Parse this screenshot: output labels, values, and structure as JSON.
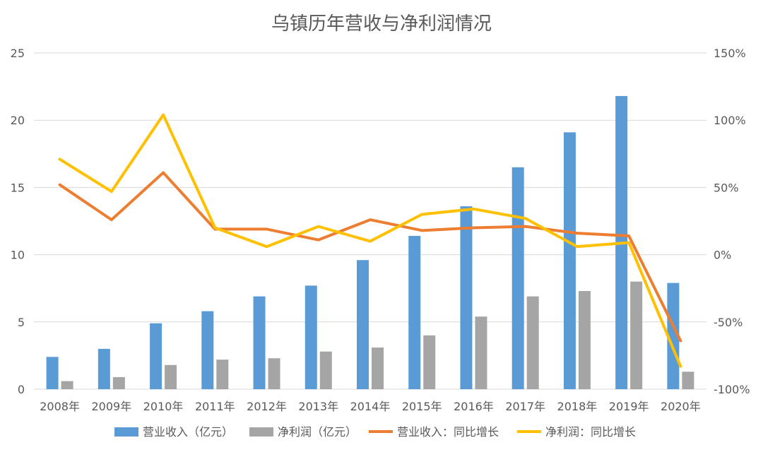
{
  "chart_data": {
    "type": "bar",
    "title": "乌镇历年营收与净利润情况",
    "categories": [
      "2008年",
      "2009年",
      "2010年",
      "2011年",
      "2012年",
      "2013年",
      "2014年",
      "2015年",
      "2016年",
      "2017年",
      "2018年",
      "2019年",
      "2020年"
    ],
    "series": [
      {
        "name": "营业收入（亿元）",
        "type": "bar",
        "axis": "left",
        "color": "#5b9bd5",
        "values": [
          2.4,
          3.0,
          4.9,
          5.8,
          6.9,
          7.7,
          9.6,
          11.4,
          13.6,
          16.5,
          19.1,
          21.8,
          7.9
        ]
      },
      {
        "name": "净利润（亿元）",
        "type": "bar",
        "axis": "left",
        "color": "#a5a5a5",
        "values": [
          0.6,
          0.9,
          1.8,
          2.2,
          2.3,
          2.8,
          3.1,
          4.0,
          5.4,
          6.9,
          7.3,
          8.0,
          1.3
        ]
      },
      {
        "name": "营业收入：同比增长",
        "type": "line",
        "axis": "right",
        "color": "#ed7d31",
        "values": [
          52,
          26,
          61,
          19,
          19,
          11,
          26,
          18,
          20,
          21,
          16,
          14,
          -64
        ]
      },
      {
        "name": "净利润：同比增长",
        "type": "line",
        "axis": "right",
        "color": "#ffc000",
        "values": [
          71,
          47,
          104,
          20,
          6,
          21,
          10,
          30,
          34,
          27,
          6,
          9,
          -83
        ]
      }
    ],
    "ylim": [
      0,
      25
    ],
    "yticks": [
      "0",
      "5",
      "10",
      "15",
      "20",
      "25"
    ],
    "y2lim": [
      -100,
      150
    ],
    "y2ticks": [
      "-100%",
      "-50%",
      "0%",
      "50%",
      "100%",
      "150%"
    ],
    "grid": true,
    "legend_position": "bottom"
  }
}
